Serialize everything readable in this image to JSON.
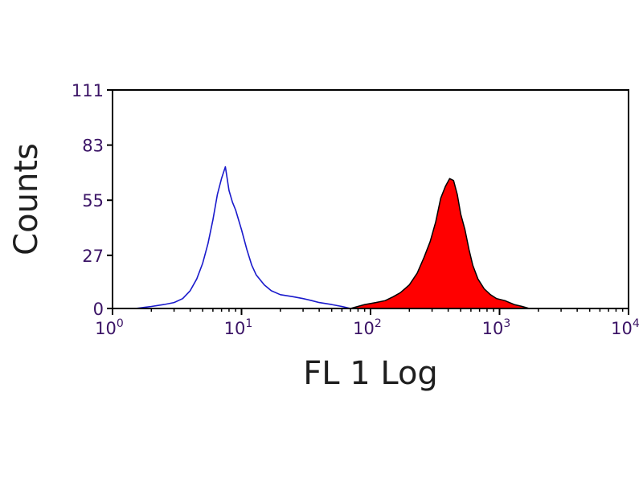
{
  "chart_data": {
    "type": "histogram",
    "xlabel": "FL 1 Log",
    "ylabel": "Counts",
    "x_scale": "log",
    "xlim": [
      1,
      10000
    ],
    "ylim": [
      0,
      111
    ],
    "grid": false,
    "legend": "none",
    "y_ticks": [
      {
        "value": 0,
        "label": "0"
      },
      {
        "value": 27,
        "label": "27"
      },
      {
        "value": 55,
        "label": "55"
      },
      {
        "value": 83,
        "label": "83"
      },
      {
        "value": 111,
        "label": "111"
      }
    ],
    "x_ticks": [
      {
        "value": 1,
        "base": "10",
        "exp": "0"
      },
      {
        "value": 10,
        "base": "10",
        "exp": "1"
      },
      {
        "value": 100,
        "base": "10",
        "exp": "2"
      },
      {
        "value": 1000,
        "base": "10",
        "exp": "3"
      },
      {
        "value": 10000,
        "base": "10",
        "exp": "4"
      }
    ],
    "series": [
      {
        "style": "outline",
        "color": "#1a1acc",
        "points": [
          [
            1.5,
            0
          ],
          [
            2.0,
            1
          ],
          [
            2.5,
            2
          ],
          [
            3.0,
            3
          ],
          [
            3.5,
            5
          ],
          [
            4.0,
            9
          ],
          [
            4.5,
            15
          ],
          [
            5.0,
            23
          ],
          [
            5.5,
            33
          ],
          [
            6.0,
            45
          ],
          [
            6.5,
            58
          ],
          [
            7.0,
            66
          ],
          [
            7.5,
            72
          ],
          [
            8.0,
            60
          ],
          [
            8.5,
            54
          ],
          [
            9.0,
            50
          ],
          [
            10.0,
            40
          ],
          [
            11.0,
            30
          ],
          [
            12.0,
            22
          ],
          [
            13.0,
            17
          ],
          [
            15.0,
            12
          ],
          [
            17.0,
            9
          ],
          [
            20.0,
            7
          ],
          [
            25.0,
            6
          ],
          [
            30.0,
            5
          ],
          [
            35.0,
            4
          ],
          [
            40.0,
            3
          ],
          [
            50.0,
            2
          ],
          [
            60.0,
            1
          ],
          [
            70.0,
            0
          ]
        ]
      },
      {
        "style": "filled",
        "color": "#ff0000",
        "edge_color": "#000000",
        "points": [
          [
            70,
            0
          ],
          [
            90,
            2
          ],
          [
            110,
            3
          ],
          [
            130,
            4
          ],
          [
            150,
            6
          ],
          [
            170,
            8
          ],
          [
            200,
            12
          ],
          [
            230,
            18
          ],
          [
            260,
            26
          ],
          [
            290,
            34
          ],
          [
            320,
            44
          ],
          [
            350,
            56
          ],
          [
            380,
            62
          ],
          [
            410,
            66
          ],
          [
            440,
            65
          ],
          [
            470,
            58
          ],
          [
            500,
            48
          ],
          [
            540,
            40
          ],
          [
            580,
            30
          ],
          [
            620,
            22
          ],
          [
            680,
            15
          ],
          [
            760,
            10
          ],
          [
            850,
            7
          ],
          [
            950,
            5
          ],
          [
            1100,
            4
          ],
          [
            1300,
            2
          ],
          [
            1500,
            1
          ],
          [
            1700,
            0
          ]
        ]
      }
    ]
  }
}
